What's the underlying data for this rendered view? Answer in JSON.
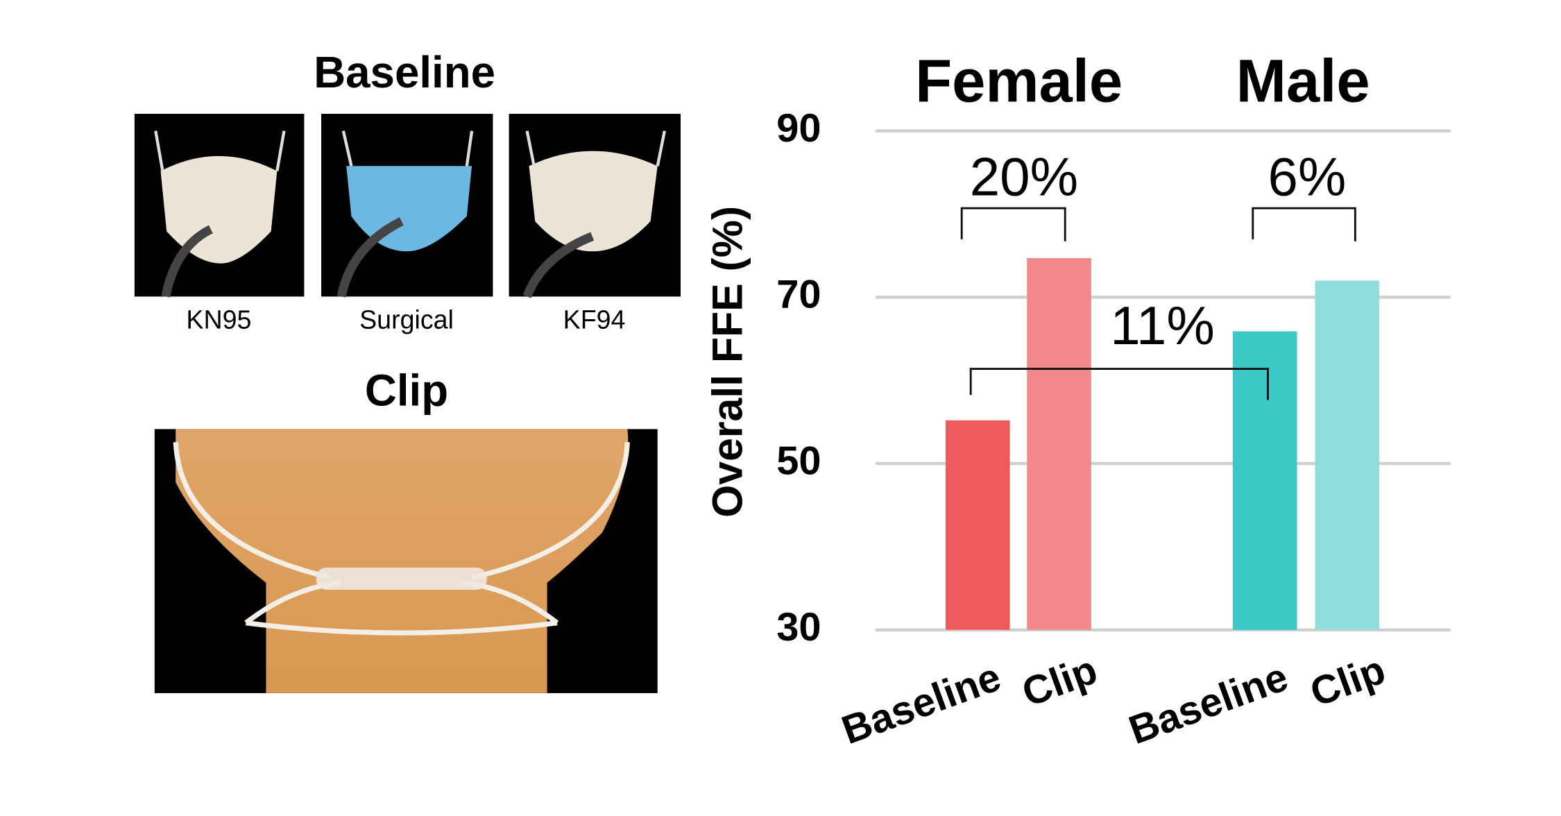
{
  "figure": {
    "baseline_title": "Baseline",
    "mask_labels": [
      "KN95",
      "Surgical",
      "KF94"
    ],
    "clip_title": "Clip"
  },
  "chart_data": {
    "type": "bar",
    "y_label": "Overall FFE (%)",
    "groups": [
      {
        "name": "Female",
        "bars": [
          {
            "label": "Baseline",
            "value": 55.2,
            "color": "#ef5b5d"
          },
          {
            "label": "Clip",
            "value": 74.7,
            "color": "#f3888a"
          }
        ]
      },
      {
        "name": "Male",
        "bars": [
          {
            "label": "Baseline",
            "value": 65.9,
            "color": "#3cc9c5"
          },
          {
            "label": "Clip",
            "value": 72,
            "color": "#90dfdc"
          }
        ]
      }
    ],
    "annotations": [
      "20%",
      "6%",
      "11%"
    ],
    "ylim": [
      30,
      90
    ],
    "yticks": [
      30,
      50,
      70,
      90
    ],
    "grid": true
  }
}
